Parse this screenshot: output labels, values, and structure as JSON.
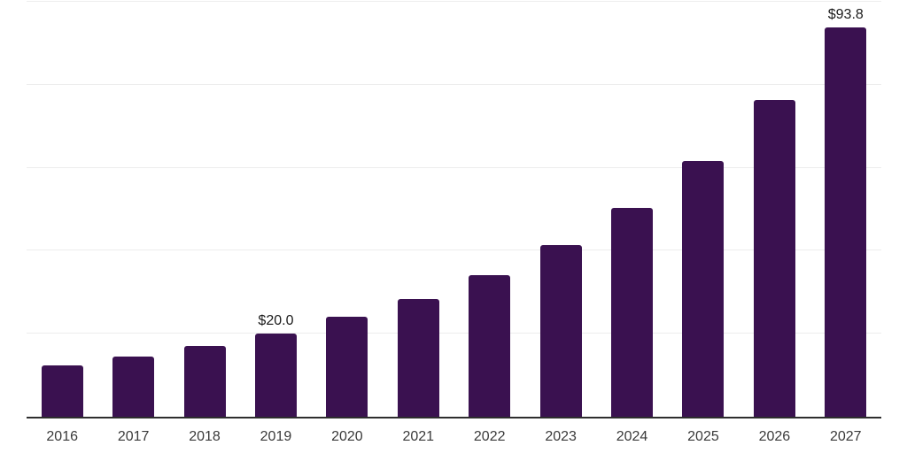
{
  "chart_data": {
    "type": "bar",
    "title": "",
    "xlabel": "",
    "ylabel": "",
    "categories": [
      "2016",
      "2017",
      "2018",
      "2019",
      "2020",
      "2021",
      "2022",
      "2023",
      "2024",
      "2025",
      "2026",
      "2027"
    ],
    "values": [
      12.3,
      14.6,
      17.1,
      20.0,
      24.0,
      28.3,
      34.2,
      41.3,
      50.3,
      61.7,
      76.3,
      93.8
    ],
    "value_unit_prefix": "$",
    "data_labels": [
      {
        "category": "2019",
        "text": "$20.0"
      },
      {
        "category": "2027",
        "text": "$93.8"
      }
    ],
    "ylim": [
      0,
      100
    ],
    "gridline_values": [
      20,
      40,
      60,
      80,
      100
    ],
    "grid": "horizontal-light",
    "legend": "none",
    "y_axis_tick_labels": "none",
    "colors": {
      "bar": "#3a1150",
      "axis_line": "#2e2e2e",
      "gridline": "#ededed",
      "tick_label": "#3a3a3a",
      "data_label": "#1a1a1a",
      "background": "#ffffff"
    }
  }
}
